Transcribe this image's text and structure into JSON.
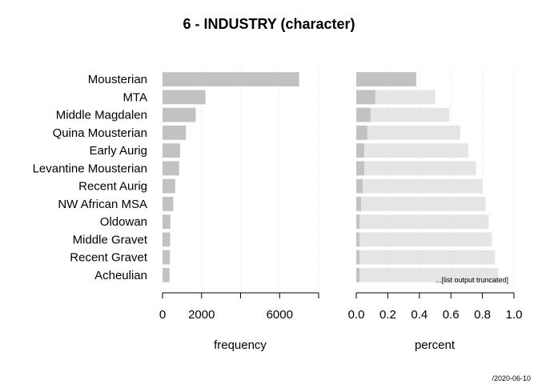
{
  "chart_data": {
    "type": "bar",
    "title": "6 - INDUSTRY (character)",
    "categories": [
      "Mousterian",
      "MTA",
      "Middle Magdalen",
      "Quina Mousterian",
      "Early Aurig",
      "Levantine Mousterian",
      "Recent Aurig",
      "NW African MSA",
      "Oldowan",
      "Middle Gravet",
      "Recent Gravet",
      "Acheulian"
    ],
    "frequency": {
      "xlabel": "frequency",
      "xlim": [
        0,
        8000
      ],
      "ticks": [
        0,
        2000,
        6000
      ],
      "values": [
        7000,
        2200,
        1700,
        1200,
        900,
        850,
        650,
        550,
        400,
        390,
        380,
        360
      ]
    },
    "percent": {
      "xlabel": "percent",
      "xlim": [
        0,
        1.0
      ],
      "ticks": [
        "0.0",
        "0.2",
        "0.4",
        "0.6",
        "0.8",
        "1.0"
      ],
      "values": [
        0.38,
        0.12,
        0.09,
        0.07,
        0.05,
        0.05,
        0.04,
        0.03,
        0.02,
        0.02,
        0.02,
        0.02
      ],
      "cumulative": [
        0.38,
        0.5,
        0.59,
        0.66,
        0.71,
        0.76,
        0.8,
        0.82,
        0.84,
        0.86,
        0.88,
        0.9
      ]
    },
    "note": "...[list output truncated]",
    "date": "/2020-06-10",
    "colors": {
      "bar": "#c2c2c2",
      "cumulative_bar": "#e5e5e5",
      "grid": "#d3d3d3",
      "axis": "#000000"
    }
  }
}
